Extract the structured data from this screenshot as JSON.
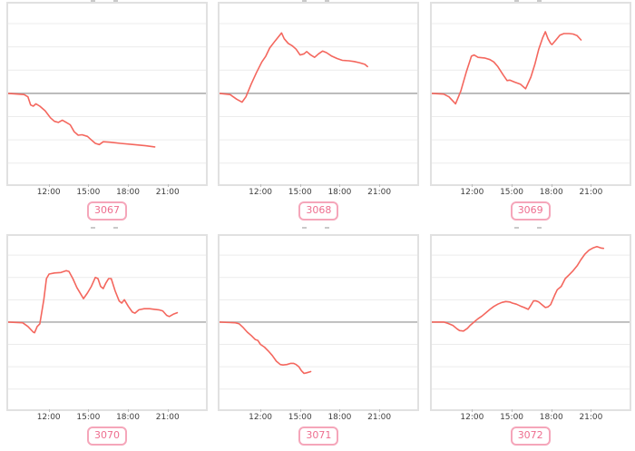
{
  "colors": {
    "line": "#f4675e",
    "baseline": "#b3b3b3",
    "gridline": "#ececec",
    "plot_border": "#e1e1e1",
    "axis_text": "#3d3d3d",
    "badge_text": "#ee6e8f",
    "badge_border": "#f5a6ba"
  },
  "chart_data": [
    {
      "type": "line",
      "badge": "3067",
      "x_tick_labels": [
        "12:00",
        "15:00",
        "18:00",
        "21:00"
      ],
      "x_tick_hours": [
        12,
        15,
        18,
        21
      ],
      "x_domain_hours": [
        9,
        24
      ],
      "ylim_units": [
        -3.9,
        3.9
      ],
      "baseline_value": 0,
      "grid": "horizontal-only",
      "points_hour_value": [
        [
          9,
          0
        ],
        [
          10.2,
          -0.05
        ],
        [
          10.5,
          -0.15
        ],
        [
          10.7,
          -0.5
        ],
        [
          10.9,
          -0.55
        ],
        [
          11.1,
          -0.45
        ],
        [
          11.4,
          -0.55
        ],
        [
          11.8,
          -0.75
        ],
        [
          12.2,
          -1.05
        ],
        [
          12.5,
          -1.2
        ],
        [
          12.8,
          -1.25
        ],
        [
          13.1,
          -1.15
        ],
        [
          13.4,
          -1.25
        ],
        [
          13.7,
          -1.35
        ],
        [
          14,
          -1.65
        ],
        [
          14.3,
          -1.8
        ],
        [
          14.6,
          -1.78
        ],
        [
          15,
          -1.85
        ],
        [
          15.3,
          -2
        ],
        [
          15.6,
          -2.15
        ],
        [
          15.9,
          -2.2
        ],
        [
          16.2,
          -2.08
        ],
        [
          16.7,
          -2.1
        ],
        [
          17.5,
          -2.15
        ],
        [
          18.5,
          -2.2
        ],
        [
          19.4,
          -2.25
        ],
        [
          20.1,
          -2.3
        ]
      ]
    },
    {
      "type": "line",
      "badge": "3068",
      "x_tick_labels": [
        "12:00",
        "15:00",
        "18:00",
        "21:00"
      ],
      "x_tick_hours": [
        12,
        15,
        18,
        21
      ],
      "x_domain_hours": [
        9,
        24
      ],
      "ylim_units": [
        -3.9,
        3.9
      ],
      "baseline_value": 0,
      "grid": "horizontal-only",
      "points_hour_value": [
        [
          9,
          0
        ],
        [
          9.8,
          -0.05
        ],
        [
          10.3,
          -0.25
        ],
        [
          10.7,
          -0.38
        ],
        [
          11,
          -0.15
        ],
        [
          11.4,
          0.4
        ],
        [
          11.8,
          0.9
        ],
        [
          12.2,
          1.35
        ],
        [
          12.5,
          1.6
        ],
        [
          12.8,
          1.95
        ],
        [
          13.2,
          2.25
        ],
        [
          13.7,
          2.6
        ],
        [
          13.9,
          2.35
        ],
        [
          14.2,
          2.15
        ],
        [
          14.5,
          2.05
        ],
        [
          14.8,
          1.9
        ],
        [
          15.1,
          1.65
        ],
        [
          15.4,
          1.7
        ],
        [
          15.6,
          1.8
        ],
        [
          15.9,
          1.65
        ],
        [
          16.2,
          1.55
        ],
        [
          16.5,
          1.7
        ],
        [
          16.8,
          1.82
        ],
        [
          17.1,
          1.75
        ],
        [
          17.5,
          1.6
        ],
        [
          17.9,
          1.5
        ],
        [
          18.3,
          1.42
        ],
        [
          18.8,
          1.4
        ],
        [
          19.2,
          1.37
        ],
        [
          19.6,
          1.32
        ],
        [
          20,
          1.25
        ],
        [
          20.2,
          1.15
        ]
      ]
    },
    {
      "type": "line",
      "badge": "3069",
      "x_tick_labels": [
        "12:00",
        "15:00",
        "18:00",
        "21:00"
      ],
      "x_tick_hours": [
        12,
        15,
        18,
        21
      ],
      "x_domain_hours": [
        9,
        24
      ],
      "ylim_units": [
        -3.9,
        3.9
      ],
      "baseline_value": 0,
      "grid": "horizontal-only",
      "points_hour_value": [
        [
          9,
          0
        ],
        [
          9.9,
          -0.03
        ],
        [
          10.3,
          -0.15
        ],
        [
          10.8,
          -0.45
        ],
        [
          11.2,
          0.1
        ],
        [
          11.6,
          0.9
        ],
        [
          12,
          1.6
        ],
        [
          12.2,
          1.65
        ],
        [
          12.5,
          1.55
        ],
        [
          13,
          1.52
        ],
        [
          13.4,
          1.45
        ],
        [
          13.7,
          1.35
        ],
        [
          14,
          1.15
        ],
        [
          14.4,
          0.8
        ],
        [
          14.7,
          0.55
        ],
        [
          14.9,
          0.57
        ],
        [
          15.3,
          0.48
        ],
        [
          15.7,
          0.4
        ],
        [
          16,
          0.25
        ],
        [
          16.1,
          0.2
        ],
        [
          16.5,
          0.7
        ],
        [
          16.8,
          1.25
        ],
        [
          17.1,
          1.9
        ],
        [
          17.4,
          2.4
        ],
        [
          17.6,
          2.65
        ],
        [
          17.8,
          2.35
        ],
        [
          18,
          2.15
        ],
        [
          18.1,
          2.1
        ],
        [
          18.4,
          2.3
        ],
        [
          18.7,
          2.5
        ],
        [
          19,
          2.57
        ],
        [
          19.4,
          2.57
        ],
        [
          19.7,
          2.55
        ],
        [
          20,
          2.48
        ],
        [
          20.3,
          2.3
        ]
      ]
    },
    {
      "type": "line",
      "badge": "3070",
      "x_tick_labels": [
        "12:00",
        "15:00",
        "18:00",
        "21:00"
      ],
      "x_tick_hours": [
        12,
        15,
        18,
        21
      ],
      "x_domain_hours": [
        9,
        24
      ],
      "ylim_units": [
        -3.9,
        3.9
      ],
      "baseline_value": 0,
      "grid": "horizontal-only",
      "points_hour_value": [
        [
          9,
          0
        ],
        [
          10.1,
          -0.03
        ],
        [
          10.5,
          -0.2
        ],
        [
          10.9,
          -0.45
        ],
        [
          11,
          -0.48
        ],
        [
          11.2,
          -0.2
        ],
        [
          11.4,
          -0.08
        ],
        [
          11.7,
          1
        ],
        [
          11.9,
          1.95
        ],
        [
          12.1,
          2.15
        ],
        [
          12.5,
          2.2
        ],
        [
          13,
          2.22
        ],
        [
          13.4,
          2.3
        ],
        [
          13.6,
          2.27
        ],
        [
          13.9,
          1.95
        ],
        [
          14.2,
          1.55
        ],
        [
          14.5,
          1.25
        ],
        [
          14.7,
          1.05
        ],
        [
          15,
          1.3
        ],
        [
          15.3,
          1.6
        ],
        [
          15.6,
          2
        ],
        [
          15.8,
          1.95
        ],
        [
          16,
          1.6
        ],
        [
          16.2,
          1.5
        ],
        [
          16.4,
          1.75
        ],
        [
          16.6,
          1.95
        ],
        [
          16.8,
          1.95
        ],
        [
          17.1,
          1.4
        ],
        [
          17.4,
          0.95
        ],
        [
          17.6,
          0.85
        ],
        [
          17.8,
          1
        ],
        [
          18.1,
          0.7
        ],
        [
          18.4,
          0.45
        ],
        [
          18.6,
          0.4
        ],
        [
          18.9,
          0.55
        ],
        [
          19.3,
          0.6
        ],
        [
          19.7,
          0.6
        ],
        [
          20.1,
          0.57
        ],
        [
          20.4,
          0.55
        ],
        [
          20.7,
          0.5
        ],
        [
          21,
          0.3
        ],
        [
          21.2,
          0.25
        ],
        [
          21.5,
          0.35
        ],
        [
          21.8,
          0.42
        ]
      ]
    },
    {
      "type": "line",
      "badge": "3071",
      "x_tick_labels": [
        "12:00",
        "15:00",
        "18:00",
        "21:00"
      ],
      "x_tick_hours": [
        12,
        15,
        18,
        21
      ],
      "x_domain_hours": [
        9,
        24
      ],
      "ylim_units": [
        -3.9,
        3.9
      ],
      "baseline_value": 0,
      "grid": "horizontal-only",
      "points_hour_value": [
        [
          9,
          0
        ],
        [
          10.2,
          -0.03
        ],
        [
          10.5,
          -0.08
        ],
        [
          10.8,
          -0.25
        ],
        [
          11.1,
          -0.45
        ],
        [
          11.4,
          -0.6
        ],
        [
          11.7,
          -0.78
        ],
        [
          11.9,
          -0.82
        ],
        [
          12.1,
          -1
        ],
        [
          12.4,
          -1.12
        ],
        [
          12.7,
          -1.3
        ],
        [
          13,
          -1.5
        ],
        [
          13.3,
          -1.75
        ],
        [
          13.6,
          -1.9
        ],
        [
          13.8,
          -1.92
        ],
        [
          14.1,
          -1.9
        ],
        [
          14.4,
          -1.85
        ],
        [
          14.6,
          -1.85
        ],
        [
          14.8,
          -1.9
        ],
        [
          15,
          -2
        ],
        [
          15.2,
          -2.18
        ],
        [
          15.4,
          -2.3
        ],
        [
          15.6,
          -2.27
        ],
        [
          15.9,
          -2.22
        ]
      ]
    },
    {
      "type": "line",
      "badge": "3072",
      "x_tick_labels": [
        "12:00",
        "15:00",
        "18:00",
        "21:00"
      ],
      "x_tick_hours": [
        12,
        15,
        18,
        21
      ],
      "x_domain_hours": [
        9,
        24
      ],
      "ylim_units": [
        -3.9,
        3.9
      ],
      "baseline_value": 0,
      "grid": "horizontal-only",
      "points_hour_value": [
        [
          9,
          0
        ],
        [
          9.9,
          0
        ],
        [
          10.2,
          -0.05
        ],
        [
          10.6,
          -0.15
        ],
        [
          10.9,
          -0.3
        ],
        [
          11.1,
          -0.38
        ],
        [
          11.4,
          -0.4
        ],
        [
          11.7,
          -0.28
        ],
        [
          11.9,
          -0.15
        ],
        [
          12.2,
          0
        ],
        [
          12.5,
          0.15
        ],
        [
          12.8,
          0.27
        ],
        [
          13.1,
          0.42
        ],
        [
          13.4,
          0.57
        ],
        [
          13.7,
          0.7
        ],
        [
          14,
          0.8
        ],
        [
          14.3,
          0.88
        ],
        [
          14.6,
          0.92
        ],
        [
          14.9,
          0.9
        ],
        [
          15.1,
          0.85
        ],
        [
          15.4,
          0.8
        ],
        [
          15.7,
          0.72
        ],
        [
          16,
          0.65
        ],
        [
          16.3,
          0.57
        ],
        [
          16.5,
          0.75
        ],
        [
          16.7,
          0.95
        ],
        [
          16.9,
          0.95
        ],
        [
          17.1,
          0.9
        ],
        [
          17.4,
          0.75
        ],
        [
          17.6,
          0.65
        ],
        [
          17.8,
          0.68
        ],
        [
          18,
          0.78
        ],
        [
          18.3,
          1.2
        ],
        [
          18.5,
          1.45
        ],
        [
          18.8,
          1.6
        ],
        [
          19.1,
          1.95
        ],
        [
          19.4,
          2.12
        ],
        [
          19.7,
          2.3
        ],
        [
          20,
          2.52
        ],
        [
          20.3,
          2.8
        ],
        [
          20.6,
          3.05
        ],
        [
          20.9,
          3.22
        ],
        [
          21.2,
          3.32
        ],
        [
          21.5,
          3.38
        ],
        [
          21.8,
          3.32
        ],
        [
          22,
          3.3
        ]
      ]
    }
  ]
}
